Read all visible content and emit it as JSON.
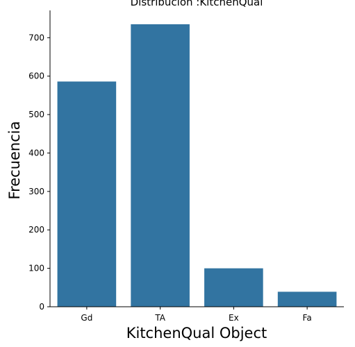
{
  "chart_data": {
    "type": "bar",
    "title": "Distribución :KitchenQual",
    "xlabel": "KitchenQual Object",
    "ylabel": "Frecuencia",
    "categories": [
      "Gd",
      "TA",
      "Ex",
      "Fa"
    ],
    "values": [
      586,
      735,
      100,
      39
    ],
    "ylim": [
      0,
      771
    ],
    "yticks": [
      0,
      100,
      200,
      300,
      400,
      500,
      600,
      700
    ],
    "grid": false,
    "legend": "none",
    "bar_color": "#3274a1"
  }
}
